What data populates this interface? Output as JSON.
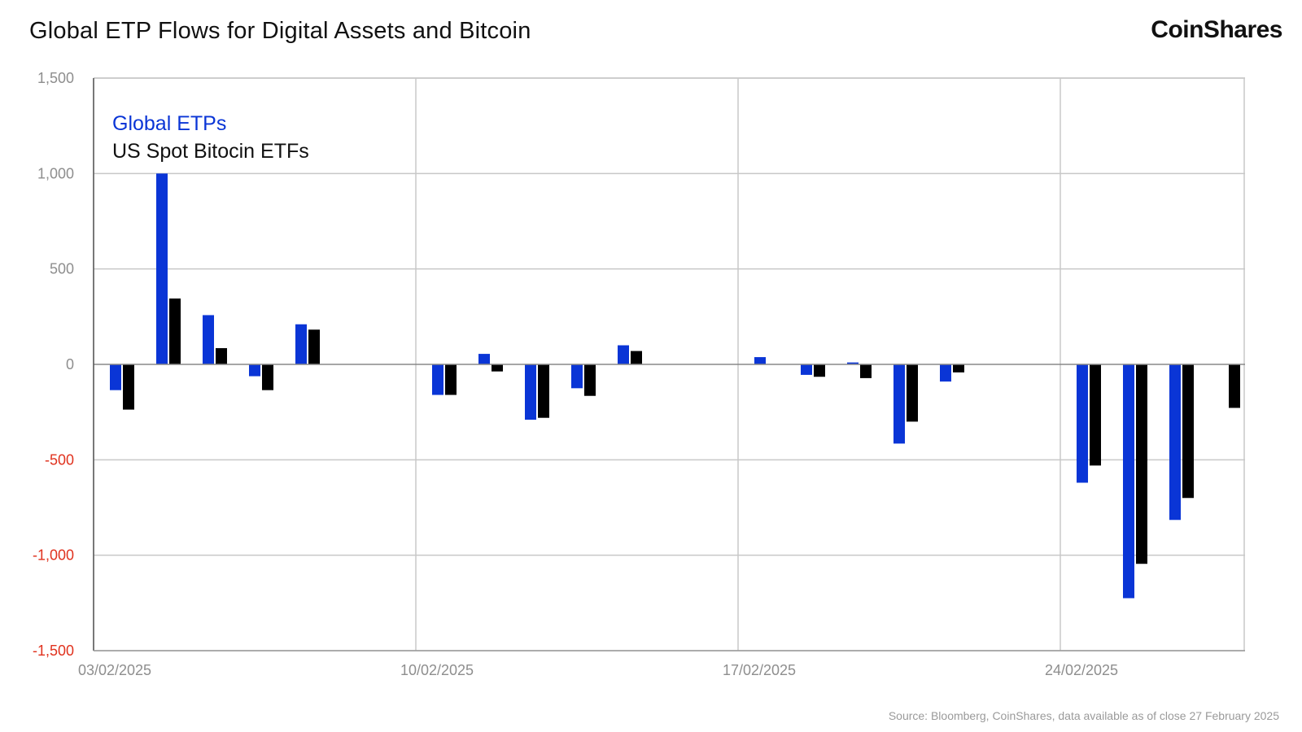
{
  "header": {
    "title": "Global ETP Flows for Digital Assets and Bitcoin",
    "brand": "CoinShares"
  },
  "footer": {
    "source": "Source: Bloomberg, CoinShares, data available as of close 27 February 2025"
  },
  "colors": {
    "global": "#0a35d6",
    "us_spot": "#000000",
    "grid": "#c8c8c8",
    "axis": "#555555",
    "tick_positive": "#8e8e8e",
    "tick_negative": "#e0321e"
  },
  "chart_data": {
    "type": "bar",
    "title": "Global ETP Flows for Digital Assets and Bitcoin",
    "xlabel": "",
    "ylabel": "",
    "ylim": [
      -1500,
      1500
    ],
    "yticks": [
      1500,
      1000,
      500,
      0,
      -500,
      -1000,
      -1500
    ],
    "ytick_labels": [
      "1,500",
      "1,000",
      "500",
      "0",
      "-500",
      "-1,000",
      "-1,500"
    ],
    "xticks": [
      "03/02/2025",
      "10/02/2025",
      "17/02/2025",
      "24/02/2025"
    ],
    "grid": true,
    "legend_position": "top-left",
    "categories": [
      "03/02/2025",
      "04/02/2025",
      "05/02/2025",
      "06/02/2025",
      "07/02/2025",
      "10/02/2025",
      "11/02/2025",
      "12/02/2025",
      "13/02/2025",
      "14/02/2025",
      "17/02/2025",
      "18/02/2025",
      "19/02/2025",
      "20/02/2025",
      "21/02/2025",
      "24/02/2025",
      "25/02/2025",
      "26/02/2025",
      "27/02/2025"
    ],
    "series": [
      {
        "name": "Global ETPs",
        "values": [
          -135,
          1000,
          258,
          -62,
          210,
          -160,
          55,
          -290,
          -125,
          100,
          38,
          -55,
          10,
          -415,
          -90,
          -620,
          -1225,
          -815,
          null
        ]
      },
      {
        "name": "US Spot Bitocin ETFs",
        "values": [
          -237,
          345,
          85,
          -135,
          182,
          -160,
          -37,
          -280,
          -165,
          70,
          null,
          -65,
          -72,
          -300,
          -42,
          -530,
          -1045,
          -700,
          -228
        ]
      }
    ]
  }
}
